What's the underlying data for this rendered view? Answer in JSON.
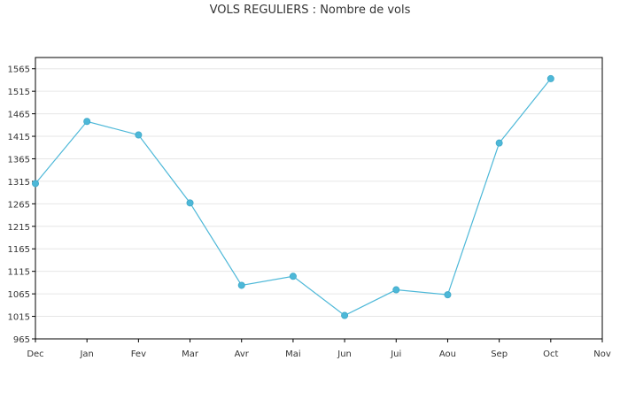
{
  "chart_data": {
    "type": "line",
    "title": "VOLS REGULIERS : Nombre de vols",
    "xlabel": "",
    "ylabel": "",
    "categories": [
      "Dec",
      "Jan",
      "Fev",
      "Mar",
      "Avr",
      "Mai",
      "Jun",
      "Jui",
      "Aou",
      "Sep",
      "Oct",
      "Nov"
    ],
    "series": [
      {
        "values": [
          1310,
          1448,
          1418,
          1267,
          1084,
          1104,
          1017,
          1074,
          1063,
          1400,
          1543,
          null
        ]
      }
    ],
    "ylim": [
      965,
      1590
    ],
    "yticks": [
      965,
      1015,
      1065,
      1115,
      1165,
      1215,
      1265,
      1315,
      1365,
      1415,
      1465,
      1515,
      1565
    ],
    "grid": true,
    "colors": {
      "line": "#4db8d8",
      "marker": "#4db8d8",
      "grid": "#e6e6e6",
      "axis": "#000000"
    }
  }
}
